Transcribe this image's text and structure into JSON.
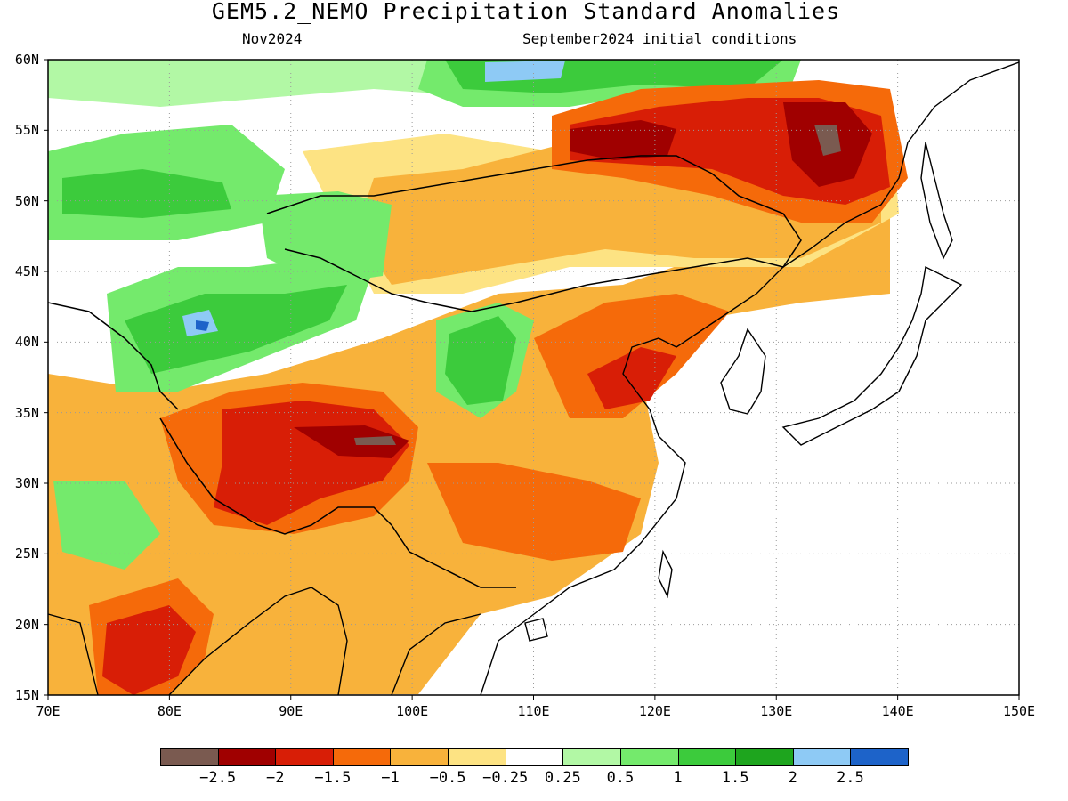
{
  "header": {
    "title": "GEM5.2_NEMO Precipitation Standard Anomalies",
    "valid_month": "Nov2024",
    "initial_conditions": "September2024 initial conditions"
  },
  "map": {
    "region": "East Asia",
    "lon_range": [
      70,
      150
    ],
    "lat_range": [
      15,
      60
    ],
    "grid_lines": "dotted",
    "lat_labels": [
      "60N",
      "55N",
      "50N",
      "45N",
      "40N",
      "35N",
      "30N",
      "25N",
      "20N",
      "15N"
    ],
    "lon_labels": [
      "70E",
      "80E",
      "90E",
      "100E",
      "110E",
      "120E",
      "130E",
      "140E",
      "150E"
    ]
  },
  "colorbar": {
    "colors": [
      "#7a5a50",
      "#a00000",
      "#d81e06",
      "#f56a0a",
      "#f8b23b",
      "#fde383",
      "#ffffff",
      "#b2f8a5",
      "#74ea6c",
      "#3ccb3c",
      "#1ea51e",
      "#8ecaf5",
      "#1d63c9"
    ],
    "labels": [
      "−2.5",
      "−2",
      "−1.5",
      "−1",
      "−0.5",
      "−0.25",
      "0.25",
      "0.5",
      "1",
      "1.5",
      "2",
      "2.5"
    ]
  }
}
